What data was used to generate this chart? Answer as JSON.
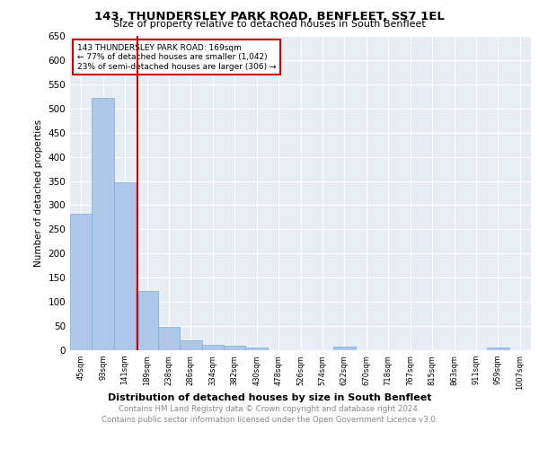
{
  "title": "143, THUNDERSLEY PARK ROAD, BENFLEET, SS7 1EL",
  "subtitle": "Size of property relative to detached houses in South Benfleet",
  "xlabel": "Distribution of detached houses by size in South Benfleet",
  "ylabel": "Number of detached properties",
  "footer_line1": "Contains HM Land Registry data © Crown copyright and database right 2024.",
  "footer_line2": "Contains public sector information licensed under the Open Government Licence v3.0.",
  "categories": [
    "45sqm",
    "93sqm",
    "141sqm",
    "189sqm",
    "238sqm",
    "286sqm",
    "334sqm",
    "382sqm",
    "430sqm",
    "478sqm",
    "526sqm",
    "574sqm",
    "622sqm",
    "670sqm",
    "718sqm",
    "767sqm",
    "815sqm",
    "863sqm",
    "911sqm",
    "959sqm",
    "1007sqm"
  ],
  "values": [
    283,
    522,
    347,
    122,
    49,
    20,
    12,
    10,
    5,
    0,
    0,
    0,
    7,
    0,
    0,
    0,
    0,
    0,
    0,
    5,
    0
  ],
  "bar_color": "#aec6e8",
  "bar_edge_color": "#7aafd4",
  "bar_edge_width": 0.5,
  "grid_color": "#ffffff",
  "bg_color": "#e8eef4",
  "ylim": [
    0,
    650
  ],
  "yticks": [
    0,
    50,
    100,
    150,
    200,
    250,
    300,
    350,
    400,
    450,
    500,
    550,
    600,
    650
  ],
  "annotation_text": "143 THUNDERSLEY PARK ROAD: 169sqm\n← 77% of detached houses are smaller (1,042)\n23% of semi-detached houses are larger (306) →",
  "annotation_color": "#cc0000",
  "property_size_sqm": 169
}
